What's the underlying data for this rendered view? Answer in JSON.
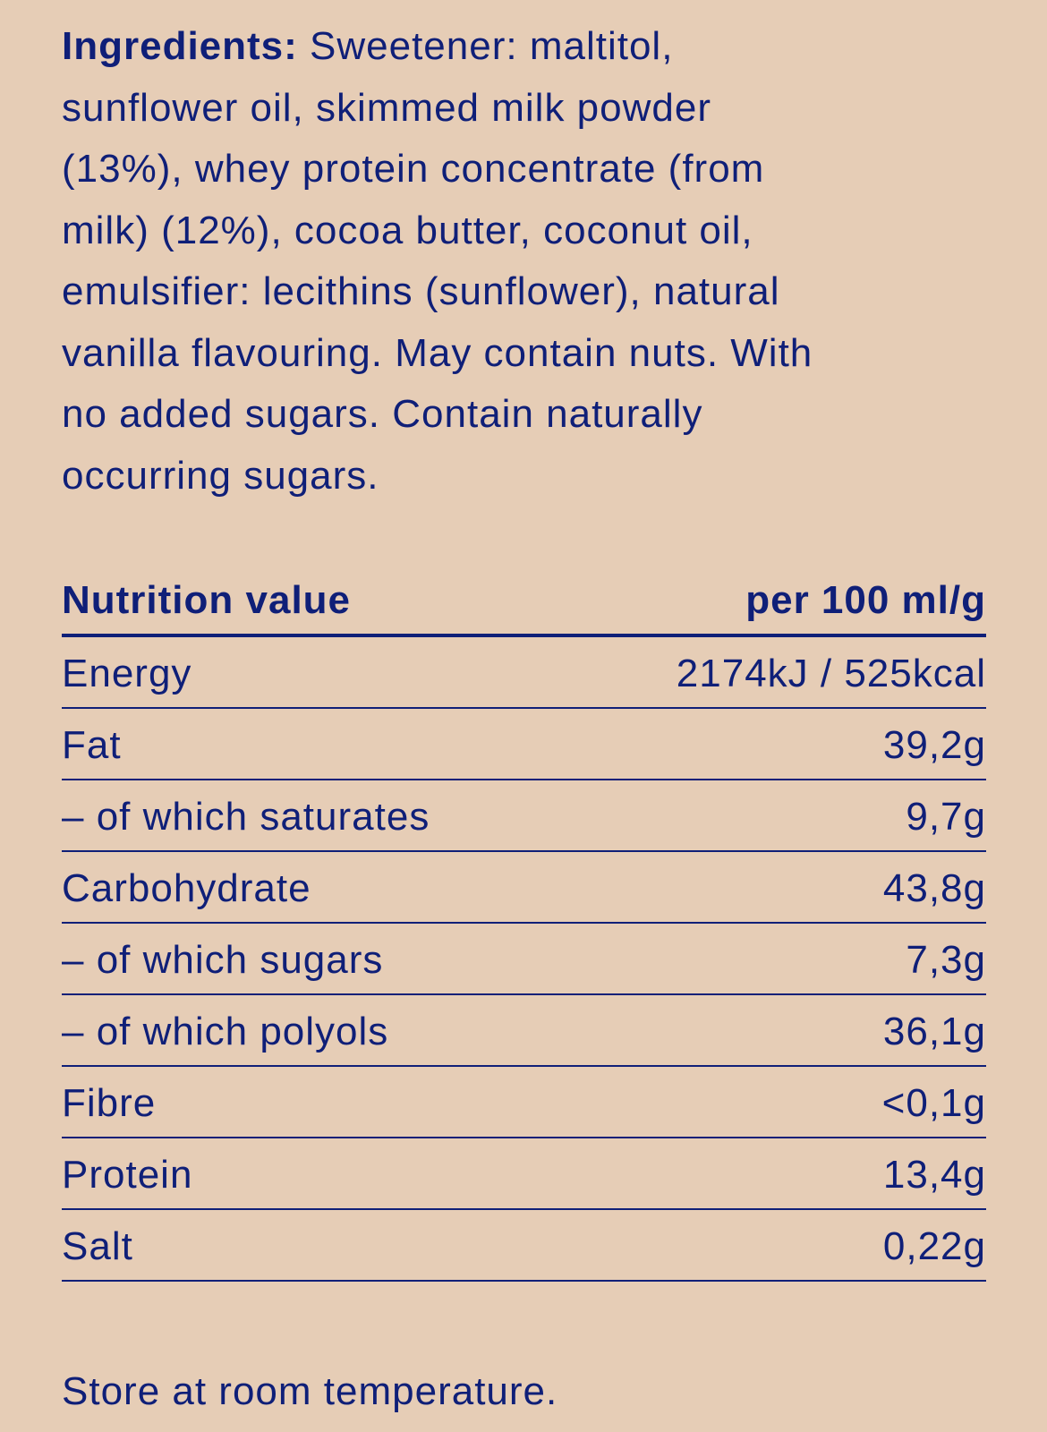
{
  "ingredients": {
    "label": "Ingredients:",
    "lines": [
      " Sweetener: maltitol,",
      "sunflower oil, skimmed milk powder",
      "(13%), whey protein concentrate (from",
      "milk) (12%), cocoa butter, coconut oil,",
      "emulsifier: lecithins (sunflower), natural",
      "vanilla flavouring. May contain nuts. With",
      "no added sugars. Contain naturally",
      "occurring sugars."
    ]
  },
  "nutrition": {
    "header": {
      "label": "Nutrition value",
      "value": "per 100 ml/g"
    },
    "rows": [
      {
        "label": "Energy",
        "value": "2174kJ / 525kcal"
      },
      {
        "label": "Fat",
        "value": "39,2g"
      },
      {
        "label": "– of which saturates",
        "value": "9,7g"
      },
      {
        "label": "Carbohydrate",
        "value": "43,8g"
      },
      {
        "label": "– of which sugars",
        "value": "7,3g"
      },
      {
        "label": "– of which polyols",
        "value": "36,1g"
      },
      {
        "label": "Fibre",
        "value": "<0,1g"
      },
      {
        "label": "Protein",
        "value": "13,4g"
      },
      {
        "label": "Salt",
        "value": "0,22g"
      }
    ]
  },
  "storage": "Store at room temperature.",
  "colors": {
    "background": "#e6cdb6",
    "text": "#0f1f78"
  }
}
